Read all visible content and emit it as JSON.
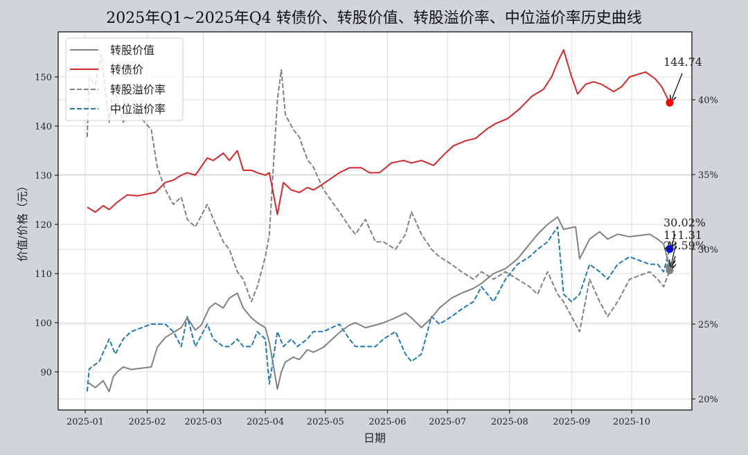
{
  "chart_data": {
    "type": "line",
    "title": "2025年Q1~2025年Q4 转债价、转股价值、转股溢价率、中位溢价率历史曲线",
    "xlabel": "日期",
    "ylabel": "价值/价格（元）",
    "ylabel_right": "",
    "x_ticks": [
      "2025-01",
      "2025-02",
      "2025-03",
      "2025-04",
      "2025-05",
      "2025-06",
      "2025-07",
      "2025-08",
      "2025-09",
      "2025-10"
    ],
    "y_ticks_left": [
      90,
      100,
      110,
      120,
      130,
      140,
      150
    ],
    "y_ticks_right": [
      "20%",
      "25%",
      "30%",
      "35%",
      "40%"
    ],
    "ylim_left": [
      84.5,
      157.5
    ],
    "ylim_right": [
      19.6,
      43.2
    ],
    "grid": true,
    "legend_position": "upper left",
    "legend": [
      "转股价值",
      "转债价",
      "转股溢价率",
      "中位溢价率"
    ],
    "series": [
      {
        "name": "转股价值",
        "axis": "left",
        "color": "#808080",
        "style": "solid",
        "x": [
          "2025-01-02",
          "2025-01-06",
          "2025-01-10",
          "2025-01-13",
          "2025-01-15",
          "2025-01-17",
          "2025-01-20",
          "2025-01-24",
          "2025-02-03",
          "2025-02-06",
          "2025-02-10",
          "2025-02-14",
          "2025-02-18",
          "2025-02-21",
          "2025-02-25",
          "2025-02-28",
          "2025-03-04",
          "2025-03-07",
          "2025-03-11",
          "2025-03-14",
          "2025-03-18",
          "2025-03-21",
          "2025-03-25",
          "2025-03-28",
          "2025-04-01",
          "2025-04-03",
          "2025-04-07",
          "2025-04-09",
          "2025-04-11",
          "2025-04-15",
          "2025-04-18",
          "2025-04-22",
          "2025-04-25",
          "2025-04-30",
          "2025-05-08",
          "2025-05-13",
          "2025-05-16",
          "2025-05-21",
          "2025-05-26",
          "2025-05-30",
          "2025-06-05",
          "2025-06-10",
          "2025-06-13",
          "2025-06-18",
          "2025-06-23",
          "2025-06-27",
          "2025-07-03",
          "2025-07-08",
          "2025-07-14",
          "2025-07-18",
          "2025-07-24",
          "2025-07-30",
          "2025-08-05",
          "2025-08-11",
          "2025-08-15",
          "2025-08-20",
          "2025-08-25",
          "2025-08-28",
          "2025-09-03",
          "2025-09-05",
          "2025-09-10",
          "2025-09-15",
          "2025-09-19",
          "2025-09-24",
          "2025-09-30",
          "2025-10-10",
          "2025-10-14",
          "2025-10-17",
          "2025-10-20"
        ],
        "values": [
          88.0,
          86.8,
          88.2,
          86.0,
          89.0,
          90.0,
          91.0,
          90.5,
          91.0,
          95.0,
          97.0,
          98.0,
          99.0,
          101.0,
          98.5,
          99.5,
          103.0,
          104.0,
          103.0,
          105.0,
          106.0,
          103.0,
          101.0,
          100.0,
          99.0,
          96.0,
          86.5,
          90.0,
          92.0,
          93.0,
          92.5,
          94.5,
          94.0,
          95.0,
          98.0,
          99.5,
          100.0,
          99.0,
          99.5,
          100.0,
          101.0,
          102.0,
          101.0,
          99.0,
          101.0,
          103.0,
          105.0,
          106.0,
          107.0,
          108.0,
          110.0,
          111.0,
          113.0,
          116.0,
          118.0,
          120.0,
          121.5,
          119.0,
          119.5,
          113.0,
          117.0,
          118.5,
          117.0,
          118.0,
          117.5,
          118.0,
          117.0,
          116.0,
          111.31
        ]
      },
      {
        "name": "转债价",
        "axis": "left",
        "color": "#d62728",
        "style": "solid",
        "x": [
          "2025-01-02",
          "2025-01-06",
          "2025-01-10",
          "2025-01-13",
          "2025-01-17",
          "2025-01-22",
          "2025-01-27",
          "2025-02-05",
          "2025-02-10",
          "2025-02-14",
          "2025-02-18",
          "2025-02-21",
          "2025-02-25",
          "2025-03-03",
          "2025-03-06",
          "2025-03-11",
          "2025-03-14",
          "2025-03-18",
          "2025-03-21",
          "2025-03-25",
          "2025-03-28",
          "2025-04-01",
          "2025-04-03",
          "2025-04-07",
          "2025-04-10",
          "2025-04-14",
          "2025-04-18",
          "2025-04-22",
          "2025-04-25",
          "2025-04-29",
          "2025-05-08",
          "2025-05-13",
          "2025-05-19",
          "2025-05-23",
          "2025-05-28",
          "2025-06-03",
          "2025-06-09",
          "2025-06-13",
          "2025-06-18",
          "2025-06-24",
          "2025-06-30",
          "2025-07-04",
          "2025-07-10",
          "2025-07-15",
          "2025-07-21",
          "2025-07-25",
          "2025-07-31",
          "2025-08-06",
          "2025-08-12",
          "2025-08-18",
          "2025-08-22",
          "2025-08-25",
          "2025-08-28",
          "2025-09-01",
          "2025-09-04",
          "2025-09-08",
          "2025-09-12",
          "2025-09-16",
          "2025-09-22",
          "2025-09-26",
          "2025-09-30",
          "2025-10-08",
          "2025-10-13",
          "2025-10-16",
          "2025-10-20"
        ],
        "values": [
          123.5,
          122.5,
          123.8,
          123.0,
          124.5,
          126.0,
          125.8,
          126.5,
          128.5,
          129.0,
          130.0,
          130.5,
          130.0,
          133.5,
          133.0,
          134.5,
          133.0,
          135.0,
          131.0,
          131.0,
          130.5,
          130.0,
          130.5,
          122.0,
          128.5,
          127.0,
          126.5,
          127.5,
          127.0,
          128.0,
          130.5,
          131.5,
          131.5,
          130.5,
          130.5,
          132.5,
          133.0,
          132.5,
          133.0,
          132.0,
          134.5,
          136.0,
          137.0,
          137.5,
          139.5,
          140.5,
          141.5,
          143.5,
          146.0,
          147.5,
          150.0,
          153.0,
          155.5,
          150.0,
          146.5,
          148.5,
          149.0,
          148.5,
          147.0,
          148.0,
          150.0,
          151.0,
          149.5,
          148.0,
          144.74
        ]
      },
      {
        "name": "转股溢价率",
        "axis": "right",
        "color": "#808080",
        "style": "dashed",
        "x": [
          "2025-01-02",
          "2025-01-03",
          "2025-01-06",
          "2025-01-09",
          "2025-01-13",
          "2025-01-15",
          "2025-01-20",
          "2025-01-24",
          "2025-02-03",
          "2025-02-06",
          "2025-02-10",
          "2025-02-14",
          "2025-02-18",
          "2025-02-21",
          "2025-02-25",
          "2025-03-03",
          "2025-03-06",
          "2025-03-11",
          "2025-03-14",
          "2025-03-18",
          "2025-03-21",
          "2025-03-25",
          "2025-03-28",
          "2025-04-01",
          "2025-04-03",
          "2025-04-07",
          "2025-04-09",
          "2025-04-11",
          "2025-04-15",
          "2025-04-18",
          "2025-04-22",
          "2025-04-25",
          "2025-04-30",
          "2025-05-08",
          "2025-05-13",
          "2025-05-16",
          "2025-05-21",
          "2025-05-26",
          "2025-05-30",
          "2025-06-05",
          "2025-06-10",
          "2025-06-13",
          "2025-06-18",
          "2025-06-23",
          "2025-06-27",
          "2025-07-03",
          "2025-07-08",
          "2025-07-14",
          "2025-07-18",
          "2025-07-24",
          "2025-07-30",
          "2025-08-05",
          "2025-08-11",
          "2025-08-15",
          "2025-08-20",
          "2025-08-25",
          "2025-08-28",
          "2025-09-01",
          "2025-09-05",
          "2025-09-10",
          "2025-09-15",
          "2025-09-19",
          "2025-09-24",
          "2025-09-30",
          "2025-10-10",
          "2025-10-14",
          "2025-10-17",
          "2025-10-20"
        ],
        "values": [
          37.5,
          41.5,
          41.0,
          43.0,
          38.5,
          41.0,
          38.5,
          39.5,
          38.0,
          35.5,
          34.0,
          33.0,
          33.5,
          32.0,
          31.5,
          33.0,
          32.0,
          30.5,
          30.0,
          28.5,
          28.0,
          26.5,
          27.5,
          29.5,
          31.0,
          40.0,
          42.0,
          39.0,
          38.0,
          37.5,
          36.0,
          35.5,
          34.0,
          32.5,
          31.5,
          31.0,
          32.0,
          30.5,
          30.5,
          30.0,
          31.0,
          32.5,
          31.0,
          30.0,
          29.5,
          29.0,
          28.5,
          28.0,
          28.5,
          28.0,
          28.5,
          28.0,
          27.5,
          27.0,
          28.5,
          27.0,
          26.5,
          25.5,
          24.5,
          28.0,
          26.5,
          25.5,
          26.5,
          28.0,
          28.5,
          28.0,
          27.5,
          28.59
        ]
      },
      {
        "name": "中位溢价率",
        "axis": "right",
        "color": "#1f77b4",
        "style": "dashed",
        "x": [
          "2025-01-02",
          "2025-01-03",
          "2025-01-08",
          "2025-01-13",
          "2025-01-16",
          "2025-01-20",
          "2025-01-24",
          "2025-02-03",
          "2025-02-10",
          "2025-02-14",
          "2025-02-18",
          "2025-02-21",
          "2025-02-25",
          "2025-03-03",
          "2025-03-06",
          "2025-03-11",
          "2025-03-14",
          "2025-03-18",
          "2025-03-21",
          "2025-03-25",
          "2025-03-28",
          "2025-04-01",
          "2025-04-03",
          "2025-04-07",
          "2025-04-10",
          "2025-04-14",
          "2025-04-17",
          "2025-04-22",
          "2025-04-25",
          "2025-04-30",
          "2025-05-08",
          "2025-05-13",
          "2025-05-16",
          "2025-05-21",
          "2025-05-26",
          "2025-05-30",
          "2025-06-05",
          "2025-06-10",
          "2025-06-13",
          "2025-06-18",
          "2025-06-23",
          "2025-06-27",
          "2025-07-03",
          "2025-07-08",
          "2025-07-14",
          "2025-07-18",
          "2025-07-24",
          "2025-07-30",
          "2025-08-05",
          "2025-08-11",
          "2025-08-15",
          "2025-08-20",
          "2025-08-25",
          "2025-08-28",
          "2025-09-01",
          "2025-09-05",
          "2025-09-10",
          "2025-09-15",
          "2025-09-19",
          "2025-09-24",
          "2025-09-30",
          "2025-10-10",
          "2025-10-14",
          "2025-10-17",
          "2025-10-20"
        ],
        "values": [
          20.5,
          22.0,
          22.5,
          24.0,
          23.0,
          24.0,
          24.5,
          25.0,
          25.0,
          24.5,
          23.5,
          25.5,
          23.5,
          25.0,
          24.0,
          23.5,
          23.5,
          24.0,
          23.5,
          23.5,
          24.5,
          24.0,
          21.0,
          24.5,
          23.5,
          24.0,
          23.5,
          24.0,
          24.5,
          24.5,
          25.0,
          24.0,
          23.5,
          23.5,
          23.5,
          24.0,
          24.5,
          23.0,
          22.5,
          23.0,
          25.5,
          25.0,
          25.5,
          26.0,
          26.5,
          27.5,
          26.5,
          28.0,
          29.0,
          29.5,
          30.0,
          30.5,
          31.5,
          27.0,
          26.5,
          27.0,
          29.0,
          28.5,
          28.0,
          29.0,
          29.5,
          29.0,
          29.0,
          28.5,
          30.02
        ]
      }
    ],
    "annotations": [
      {
        "label": "144.74",
        "series": "转债价",
        "marker_color": "#ff0000"
      },
      {
        "label": "30.02%",
        "series": "中位溢价率",
        "marker_color": "#0000ff"
      },
      {
        "label": "111.31",
        "series": "转股价值",
        "marker_color": "#808080"
      },
      {
        "label": "28.59%",
        "series": "转股溢价率",
        "marker_color": "#808080"
      }
    ]
  }
}
